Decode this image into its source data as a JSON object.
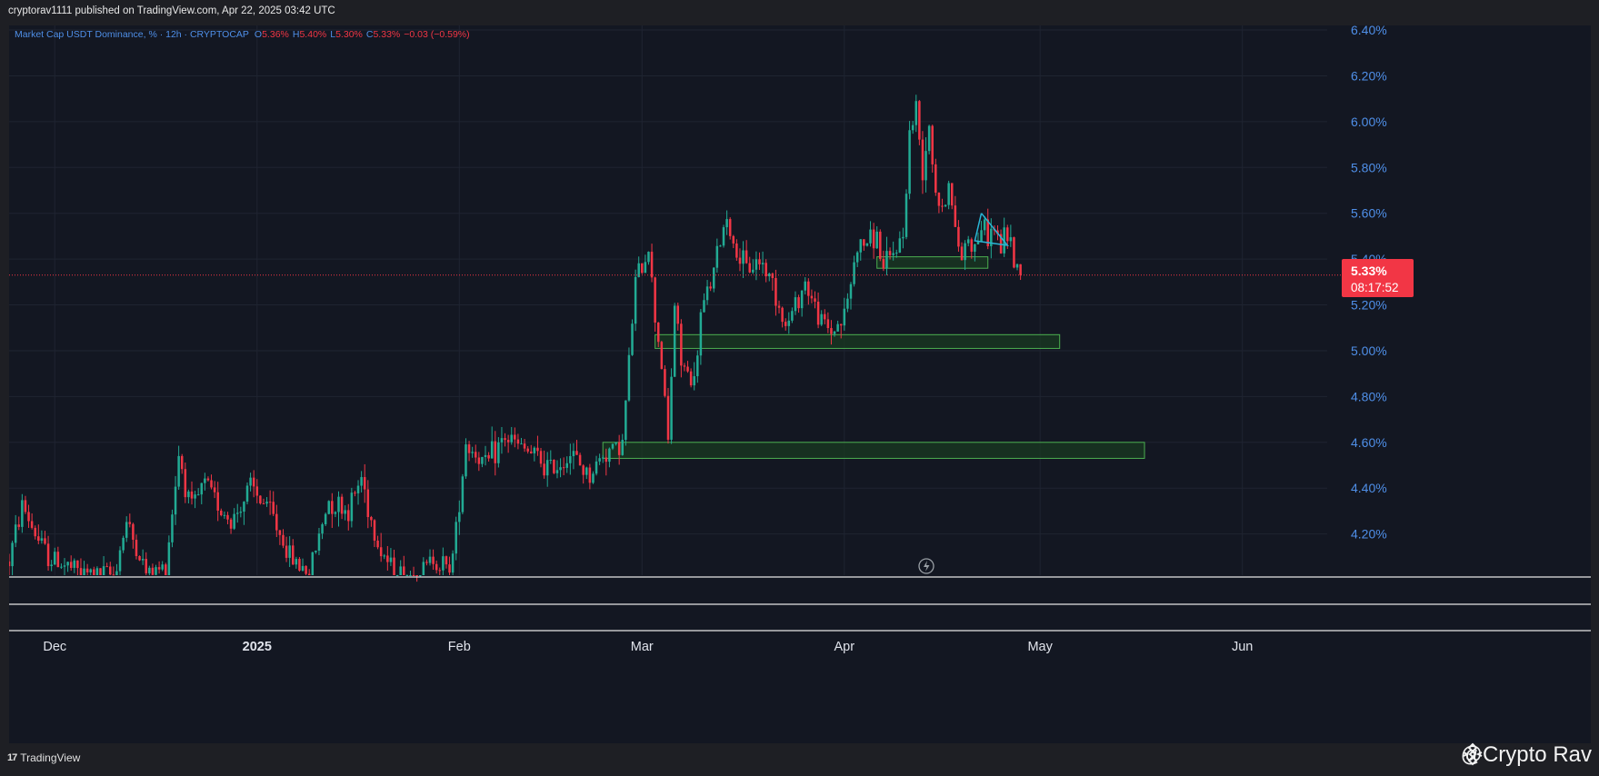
{
  "header": {
    "published": "cryptorav1111 published on TradingView.com, Apr 22, 2025 03:42 UTC"
  },
  "legend": {
    "symbol": "Market Cap USDT Dominance, % · 12h · CRYPTOCAP",
    "o_label": "O",
    "o_value": "5.36%",
    "h_label": "H",
    "h_value": "5.40%",
    "l_label": "L",
    "l_value": "5.30%",
    "c_label": "C",
    "c_value": "5.33%",
    "change": "−0.03 (−0.59%)"
  },
  "price_tag": {
    "price": "5.33%",
    "countdown": "08:17:52"
  },
  "footer": {
    "brand": "TradingView",
    "watermark": "@Crypto Rav"
  },
  "colors": {
    "up": "#22ab94",
    "down": "#f23645",
    "axis_text": "#4f8fe8",
    "zone_border": "#4caf50",
    "zone_fill": "#193a22",
    "price_line": "#f23645",
    "triangle": "#29b6d6"
  },
  "chart_data": {
    "type": "candlestick",
    "title": "",
    "symbol": "Market Cap USDT Dominance, % · 12h · CRYPTOCAP",
    "yaxis": {
      "ticks": [
        "4.20%",
        "4.40%",
        "4.60%",
        "4.80%",
        "5.00%",
        "5.20%",
        "5.40%",
        "5.60%",
        "5.80%",
        "6.00%",
        "6.20%",
        "6.40%"
      ],
      "range": [
        4.02,
        6.42
      ]
    },
    "xaxis": {
      "ticks": [
        "Dec",
        "2025",
        "Feb",
        "Mar",
        "Apr",
        "May",
        "Jun"
      ],
      "range": [
        "2024-11-24",
        "2025-06-14"
      ]
    },
    "last_price": 5.33,
    "zones": [
      {
        "from": "2025-04-06",
        "to": "2025-04-23",
        "low": 5.36,
        "high": 5.41
      },
      {
        "from": "2025-03-03",
        "to": "2025-05-04",
        "low": 5.01,
        "high": 5.07
      },
      {
        "from": "2025-02-23",
        "to": "2025-05-17",
        "low": 4.53,
        "high": 4.6
      }
    ],
    "waypoints": [
      [
        "2024-11-24",
        4.08
      ],
      [
        "2024-11-26",
        4.33
      ],
      [
        "2024-11-28",
        4.2
      ],
      [
        "2024-11-30",
        4.1
      ],
      [
        "2024-12-05",
        4.03
      ],
      [
        "2024-12-10",
        4.02
      ],
      [
        "2024-12-12",
        4.25
      ],
      [
        "2024-12-15",
        4.03
      ],
      [
        "2024-12-18",
        4.05
      ],
      [
        "2024-12-20",
        4.55
      ],
      [
        "2024-12-22",
        4.3
      ],
      [
        "2024-12-24",
        4.42
      ],
      [
        "2024-12-28",
        4.25
      ],
      [
        "2024-12-31",
        4.4
      ],
      [
        "2025-01-03",
        4.3
      ],
      [
        "2025-01-06",
        4.1
      ],
      [
        "2025-01-09",
        4.03
      ],
      [
        "2025-01-12",
        4.35
      ],
      [
        "2025-01-15",
        4.3
      ],
      [
        "2025-01-17",
        4.45
      ],
      [
        "2025-01-19",
        4.2
      ],
      [
        "2025-01-22",
        4.02
      ],
      [
        "2025-01-26",
        4.02
      ],
      [
        "2025-01-28",
        4.1
      ],
      [
        "2025-01-30",
        4.05
      ],
      [
        "2025-01-31",
        4.1
      ],
      [
        "2025-02-02",
        4.6
      ],
      [
        "2025-02-05",
        4.5
      ],
      [
        "2025-02-08",
        4.62
      ],
      [
        "2025-02-12",
        4.55
      ],
      [
        "2025-02-15",
        4.48
      ],
      [
        "2025-02-18",
        4.55
      ],
      [
        "2025-02-21",
        4.45
      ],
      [
        "2025-02-23",
        4.55
      ],
      [
        "2025-02-26",
        4.6
      ],
      [
        "2025-02-27",
        4.95
      ],
      [
        "2025-02-28",
        5.3
      ],
      [
        "2025-03-02",
        5.45
      ],
      [
        "2025-03-03",
        5.15
      ],
      [
        "2025-03-04",
        4.95
      ],
      [
        "2025-03-05",
        4.6
      ],
      [
        "2025-03-06",
        5.2
      ],
      [
        "2025-03-07",
        4.95
      ],
      [
        "2025-03-09",
        4.85
      ],
      [
        "2025-03-10",
        5.15
      ],
      [
        "2025-03-12",
        5.35
      ],
      [
        "2025-03-14",
        5.6
      ],
      [
        "2025-03-15",
        5.45
      ],
      [
        "2025-03-17",
        5.35
      ],
      [
        "2025-03-19",
        5.4
      ],
      [
        "2025-03-21",
        5.3
      ],
      [
        "2025-03-23",
        5.1
      ],
      [
        "2025-03-26",
        5.3
      ],
      [
        "2025-03-28",
        5.15
      ],
      [
        "2025-03-30",
        5.08
      ],
      [
        "2025-04-01",
        5.15
      ],
      [
        "2025-04-03",
        5.45
      ],
      [
        "2025-04-06",
        5.5
      ],
      [
        "2025-04-07",
        5.35
      ],
      [
        "2025-04-09",
        5.45
      ],
      [
        "2025-04-10",
        5.5
      ],
      [
        "2025-04-11",
        5.95
      ],
      [
        "2025-04-12",
        6.05
      ],
      [
        "2025-04-13",
        5.8
      ],
      [
        "2025-04-14",
        6.0
      ],
      [
        "2025-04-15",
        5.7
      ],
      [
        "2025-04-16",
        5.6
      ],
      [
        "2025-04-17",
        5.75
      ],
      [
        "2025-04-18",
        5.5
      ],
      [
        "2025-04-19",
        5.42
      ],
      [
        "2025-04-20",
        5.5
      ],
      [
        "2025-04-21",
        5.45
      ],
      [
        "2025-04-22",
        5.55
      ],
      [
        "2025-04-23",
        5.5
      ],
      [
        "2025-04-24",
        5.53
      ],
      [
        "2025-04-25",
        5.45
      ],
      [
        "2025-04-26",
        5.52
      ],
      [
        "2025-04-27",
        5.4
      ],
      [
        "2025-04-28",
        5.33
      ]
    ]
  }
}
